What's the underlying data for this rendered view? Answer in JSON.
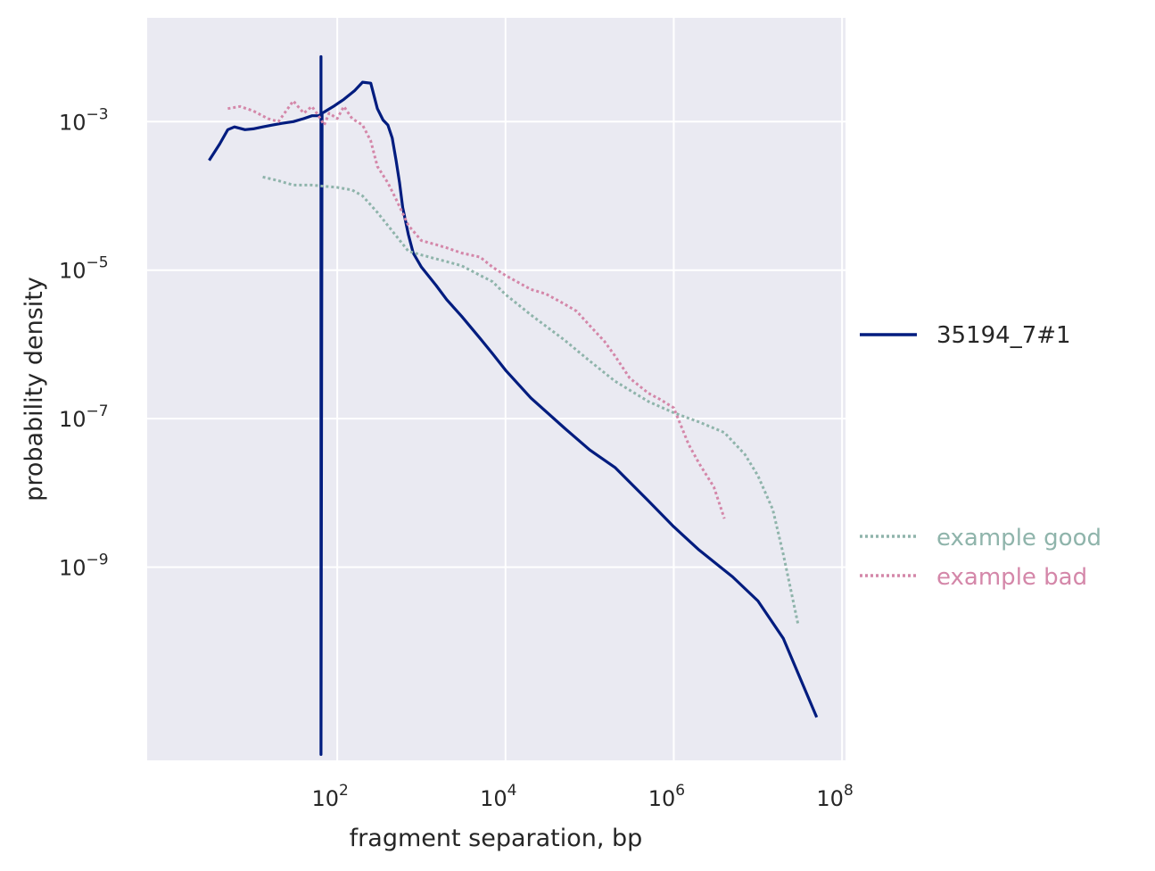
{
  "chart_data": {
    "type": "line",
    "xlabel": "fragment separation, bp",
    "ylabel": "probability density",
    "xscale": "log",
    "yscale": "log",
    "xlim": [
      0.55,
      110000000
    ],
    "ylim": [
      2.5e-12,
      0.025
    ],
    "xticks": [
      {
        "value": 100,
        "base": "10",
        "exp": "2"
      },
      {
        "value": 10000,
        "base": "10",
        "exp": "4"
      },
      {
        "value": 1000000,
        "base": "10",
        "exp": "6"
      },
      {
        "value": 100000000,
        "base": "10",
        "exp": "8"
      }
    ],
    "yticks": [
      {
        "value": 0.001,
        "base": "10",
        "exp": "−3"
      },
      {
        "value": 1e-05,
        "base": "10",
        "exp": "−5"
      },
      {
        "value": 1e-07,
        "base": "10",
        "exp": "−7"
      },
      {
        "value": 1e-09,
        "base": "10",
        "exp": "−9"
      }
    ],
    "grid": true,
    "background": "#eaeaf2",
    "legend_placement": "right",
    "series": [
      {
        "name": "35194_7#1",
        "color": "#001c7f",
        "style": "solid",
        "x": [
          3,
          4,
          5,
          6,
          8,
          10,
          13,
          17,
          22,
          30,
          40,
          50,
          60,
          64,
          64,
          64,
          66,
          70,
          90,
          120,
          160,
          200,
          250,
          300,
          350,
          400,
          450,
          500,
          550,
          600,
          700,
          800,
          1000,
          1500,
          2000,
          3000,
          5000,
          7000,
          10000,
          20000,
          50000,
          100000,
          200000,
          500000,
          1000000,
          2000000,
          5000000,
          10000000,
          20000000,
          50000000
        ],
        "y": [
          0.0003,
          0.0005,
          0.00078,
          0.00085,
          0.00078,
          0.0008,
          0.00085,
          0.0009,
          0.00095,
          0.001,
          0.0011,
          0.0012,
          0.0012,
          0.00125,
          0.0075,
          3e-12,
          0.0013,
          0.00135,
          0.0016,
          0.002,
          0.0026,
          0.0034,
          0.0033,
          0.0015,
          0.00105,
          0.0009,
          0.0006,
          0.0003,
          0.00015,
          7e-05,
          3e-05,
          1.7e-05,
          1.1e-05,
          6.2e-06,
          4e-06,
          2.4e-06,
          1.2e-06,
          7.5e-07,
          4.5e-07,
          1.9e-07,
          7.5e-08,
          3.8e-08,
          2.2e-08,
          7.8e-09,
          3.5e-09,
          1.7e-09,
          7.4e-10,
          3.5e-10,
          1.1e-10,
          9.5e-12
        ]
      },
      {
        "name": "example good",
        "color": "#8fb4ab",
        "style": "dotted",
        "x": [
          13,
          20,
          30,
          50,
          70,
          100,
          150,
          200,
          300,
          500,
          700,
          1000,
          2000,
          3000,
          5000,
          7000,
          10000,
          20000,
          50000,
          100000,
          200000,
          500000,
          1000000,
          2000000,
          4000000,
          7000000,
          10000000,
          15000000,
          20000000,
          30000000
        ],
        "y": [
          0.00018,
          0.00016,
          0.00014,
          0.00014,
          0.000135,
          0.00013,
          0.00012,
          0.0001,
          6e-05,
          2.9e-05,
          1.8e-05,
          1.6e-05,
          1.3e-05,
          1.15e-05,
          8.5e-06,
          7e-06,
          4.7e-06,
          2.5e-06,
          1.15e-06,
          6e-07,
          3.2e-07,
          1.7e-07,
          1.2e-07,
          9e-08,
          6.5e-08,
          3.3e-08,
          1.7e-08,
          6e-09,
          1.5e-09,
          1.7e-10
        ]
      },
      {
        "name": "example bad",
        "color": "#d487a9",
        "style": "dotted",
        "x": [
          5,
          7,
          10,
          15,
          20,
          30,
          40,
          50,
          60,
          70,
          80,
          100,
          120,
          150,
          200,
          250,
          300,
          400,
          500,
          700,
          1000,
          1500,
          2000,
          3000,
          5000,
          7000,
          10000,
          20000,
          30000,
          50000,
          70000,
          100000,
          150000,
          200000,
          300000,
          500000,
          700000,
          1000000,
          1500000,
          2000000,
          3000000,
          4000000
        ],
        "y": [
          0.0015,
          0.0016,
          0.0014,
          0.0011,
          0.001,
          0.0019,
          0.0013,
          0.0016,
          0.0012,
          0.0009,
          0.0013,
          0.0011,
          0.0016,
          0.0011,
          0.0009,
          0.00055,
          0.00025,
          0.00015,
          9e-05,
          4e-05,
          2.5e-05,
          2.2e-05,
          2e-05,
          1.7e-05,
          1.5e-05,
          1.1e-05,
          8.5e-06,
          5.5e-06,
          4.8e-06,
          3.5e-06,
          2.8e-06,
          1.8e-06,
          1.1e-06,
          7e-07,
          3.5e-07,
          2.2e-07,
          1.8e-07,
          1.4e-07,
          4.5e-08,
          2.5e-08,
          1.2e-08,
          4.5e-09
        ]
      }
    ]
  }
}
